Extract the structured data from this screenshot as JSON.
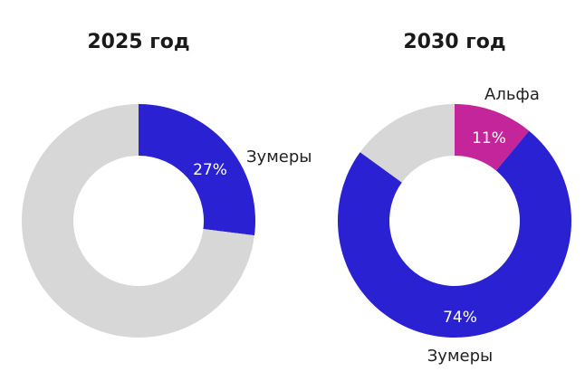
{
  "chart_data": [
    {
      "type": "pie",
      "donut": true,
      "title": "2025 год",
      "slices": [
        {
          "name": "Зумеры",
          "value": 27,
          "label": "27%",
          "color": "#2a22d2"
        },
        {
          "name": "",
          "value": 73,
          "label": "",
          "color": "#d7d7d7"
        }
      ],
      "start_angle_deg": 0,
      "direction": "clockwise"
    },
    {
      "type": "pie",
      "donut": true,
      "title": "2030 год",
      "slices": [
        {
          "name": "Альфа",
          "value": 11,
          "label": "11%",
          "color": "#c4259b"
        },
        {
          "name": "Зумеры",
          "value": 74,
          "label": "74%",
          "color": "#2a22d2"
        },
        {
          "name": "",
          "value": 15,
          "label": "",
          "color": "#d7d7d7"
        }
      ],
      "start_angle_deg": 0,
      "direction": "clockwise"
    }
  ]
}
